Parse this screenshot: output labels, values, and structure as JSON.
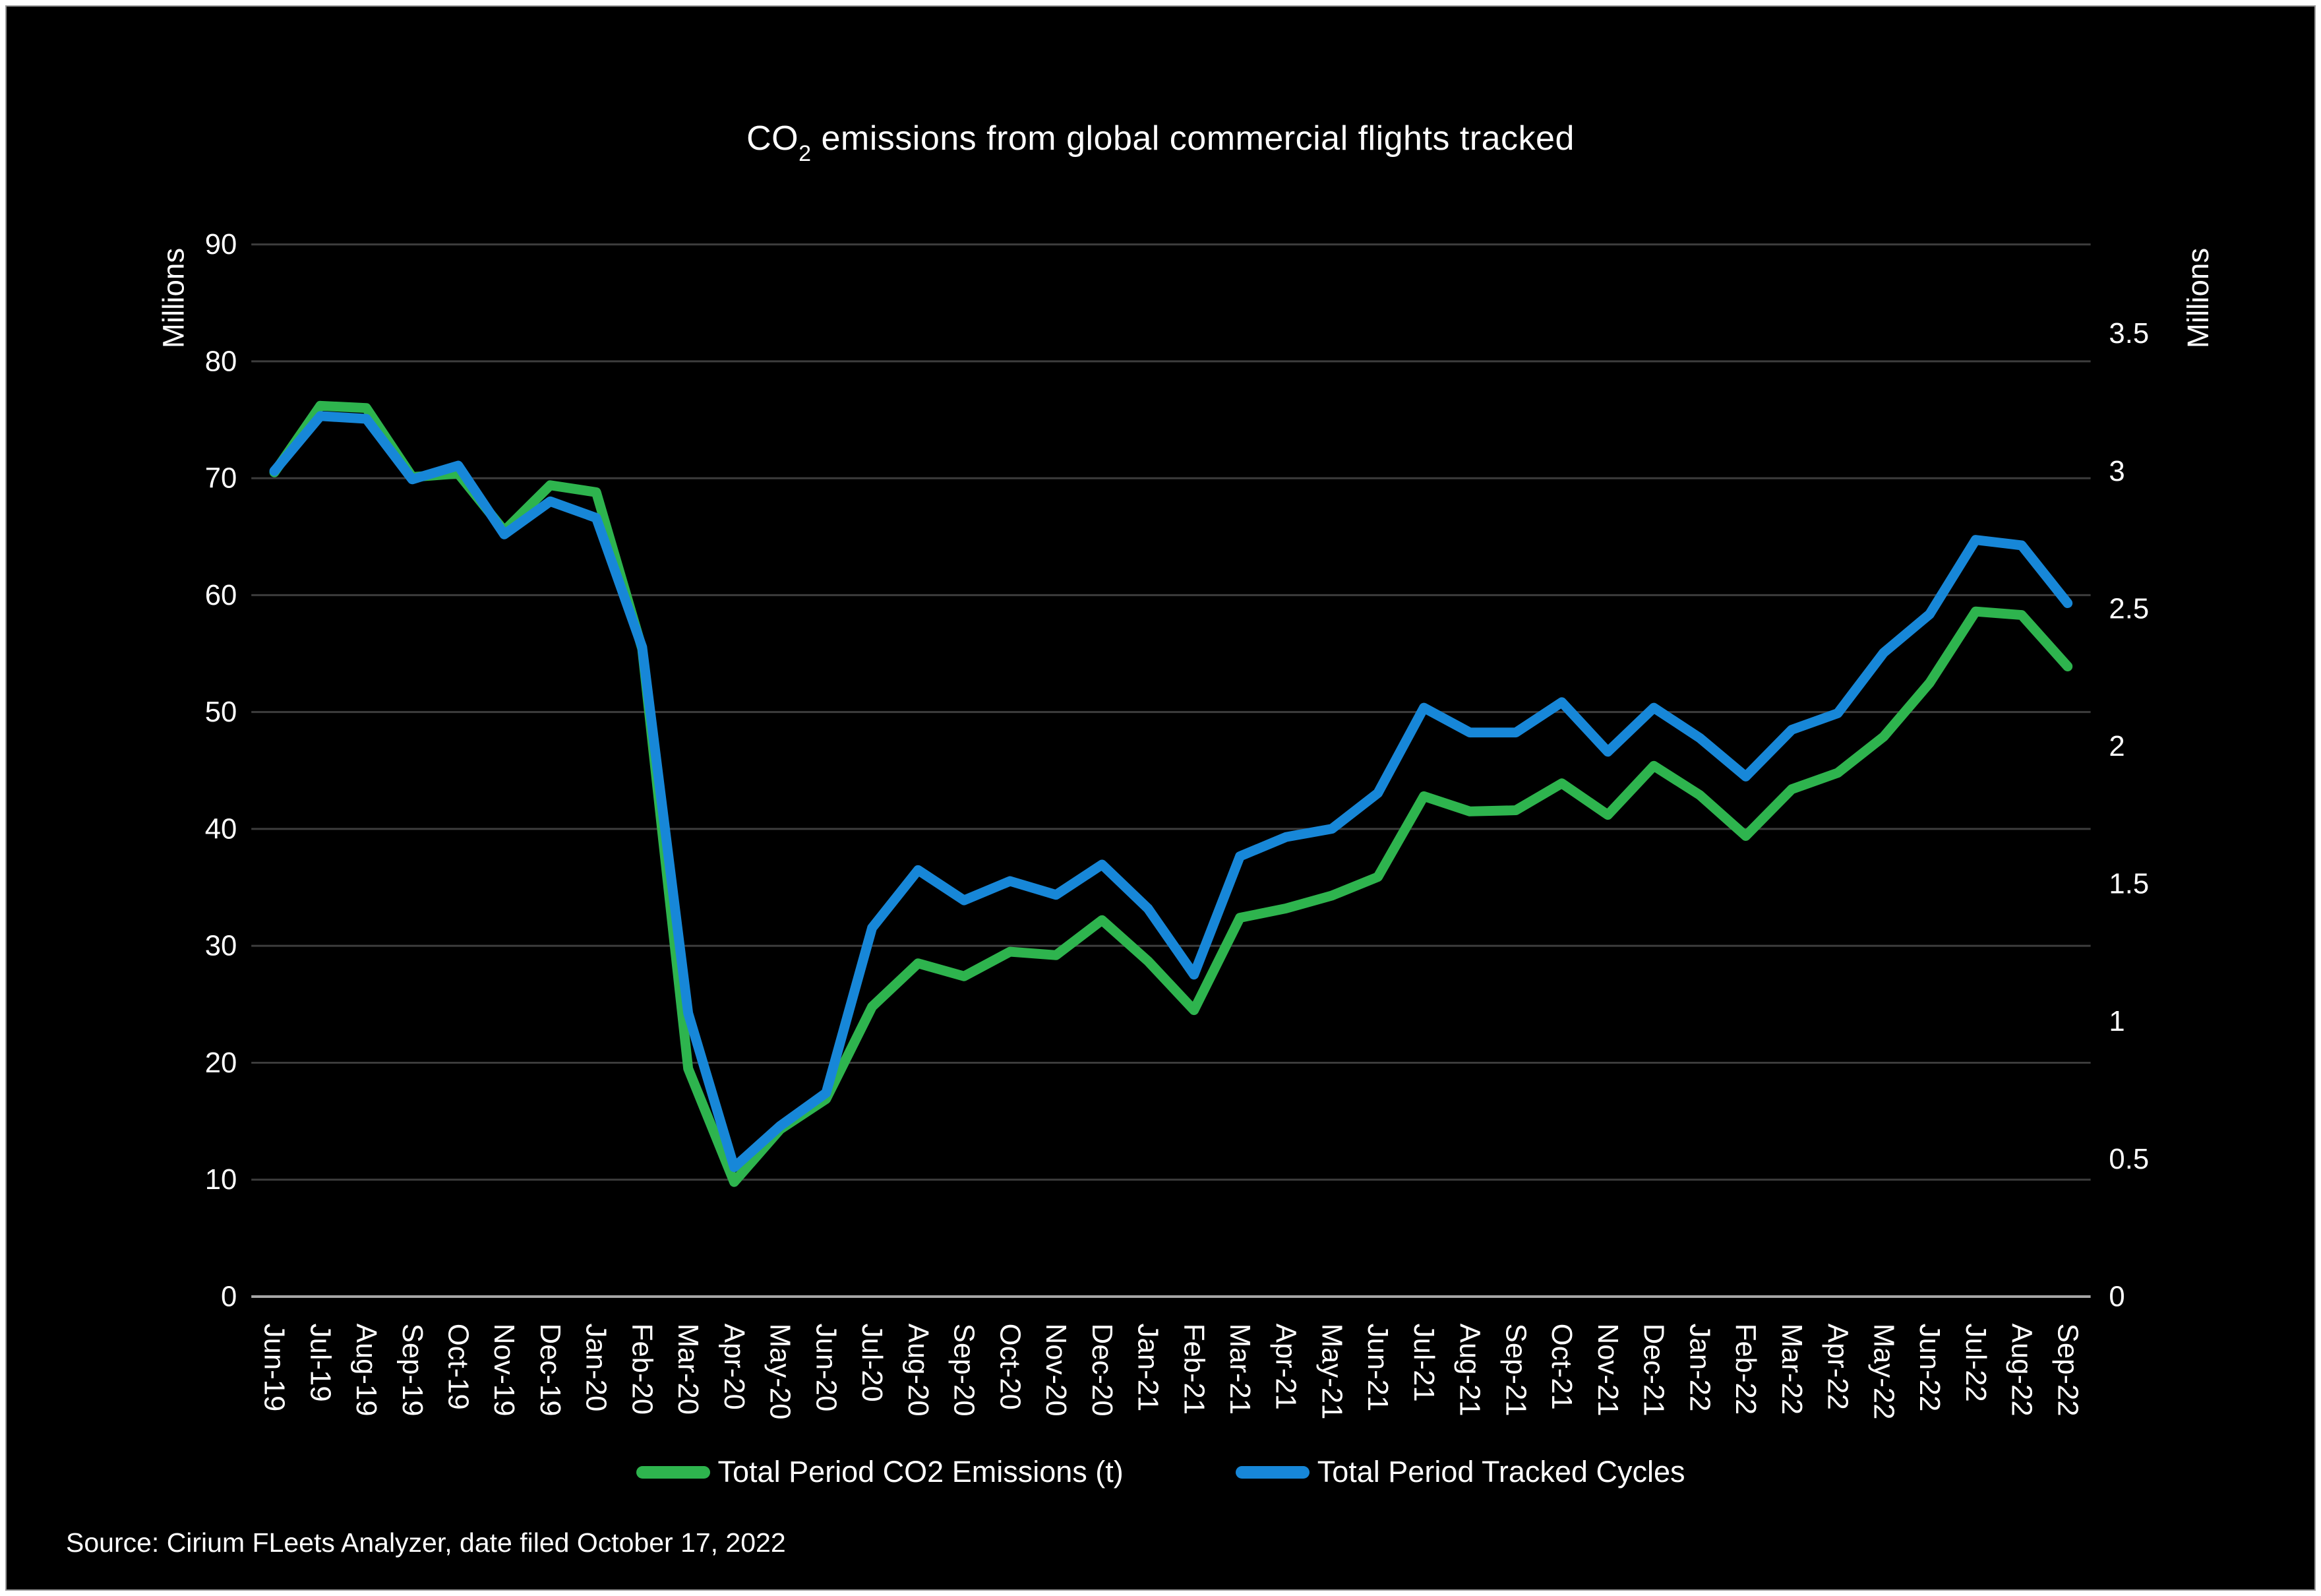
{
  "title": {
    "co": "CO",
    "sub": "2",
    "rest": " emissions from global commercial flights tracked"
  },
  "source": "Source: Cirium FLeets Analyzer, date filed October 17, 2022",
  "colors": {
    "background": "#000000",
    "frame_border": "#e9e9e9",
    "text": "#ffffff",
    "gridline": "#3d3d3d",
    "axis_line": "#a6a6a6",
    "emissions_green": "#2eb44e",
    "cycles_blue": "#1787d8"
  },
  "chart_data": {
    "type": "line",
    "title": "CO2 emissions from global commercial flights tracked",
    "grid": true,
    "legend_position": "bottom",
    "background": "#000000",
    "categories": [
      "Jun-19",
      "Jul-19",
      "Aug-19",
      "Sep-19",
      "Oct-19",
      "Nov-19",
      "Dec-19",
      "Jan-20",
      "Feb-20",
      "Mar-20",
      "Apr-20",
      "May-20",
      "Jun-20",
      "Jul-20",
      "Aug-20",
      "Sep-20",
      "Oct-20",
      "Nov-20",
      "Dec-20",
      "Jan-21",
      "Feb-21",
      "Mar-21",
      "Apr-21",
      "May-21",
      "Jun-21",
      "Jul-21",
      "Aug-21",
      "Sep-21",
      "Oct-21",
      "Nov-21",
      "Dec-21",
      "Jan-22",
      "Feb-22",
      "Mar-22",
      "Apr-22",
      "May-22",
      "Jun-22",
      "Jul-22",
      "Aug-22",
      "Sep-22"
    ],
    "series": [
      {
        "name": "Total Period CO2 Emissions (t)",
        "yaxis": "left",
        "color": "#2eb44e",
        "values": [
          70.5,
          76.2,
          76.0,
          70.1,
          70.4,
          65.5,
          69.4,
          68.8,
          55.4,
          19.5,
          9.8,
          14.3,
          16.9,
          24.8,
          28.5,
          27.4,
          29.5,
          29.2,
          32.2,
          28.7,
          24.5,
          32.4,
          33.2,
          34.3,
          35.9,
          42.8,
          41.5,
          41.6,
          43.9,
          41.2,
          45.4,
          42.9,
          39.4,
          43.4,
          44.8,
          47.9,
          52.5,
          58.6,
          58.3,
          53.9
        ]
      },
      {
        "name": "Total Period Tracked Cycles",
        "yaxis": "right",
        "color": "#1787d8",
        "values": [
          3.0,
          3.2,
          3.19,
          2.97,
          3.02,
          2.77,
          2.89,
          2.83,
          2.36,
          1.03,
          0.47,
          0.62,
          0.74,
          1.34,
          1.55,
          1.44,
          1.51,
          1.46,
          1.57,
          1.41,
          1.17,
          1.6,
          1.67,
          1.7,
          1.83,
          2.14,
          2.05,
          2.05,
          2.16,
          1.98,
          2.14,
          2.03,
          1.89,
          2.06,
          2.12,
          2.34,
          2.48,
          2.75,
          2.73,
          2.52
        ]
      }
    ],
    "left_axis": {
      "title": "Millions",
      "min": 0,
      "max": 90,
      "step": 10,
      "tick_labels": [
        "0",
        "10",
        "20",
        "30",
        "40",
        "50",
        "60",
        "70",
        "80",
        "90"
      ]
    },
    "right_axis": {
      "title": "Millions",
      "min": 0,
      "max": 3.5,
      "step": 0.5,
      "tick_labels": [
        "0",
        "0.5",
        "1",
        "1.5",
        "2",
        "2.5",
        "3",
        "3.5"
      ]
    }
  }
}
